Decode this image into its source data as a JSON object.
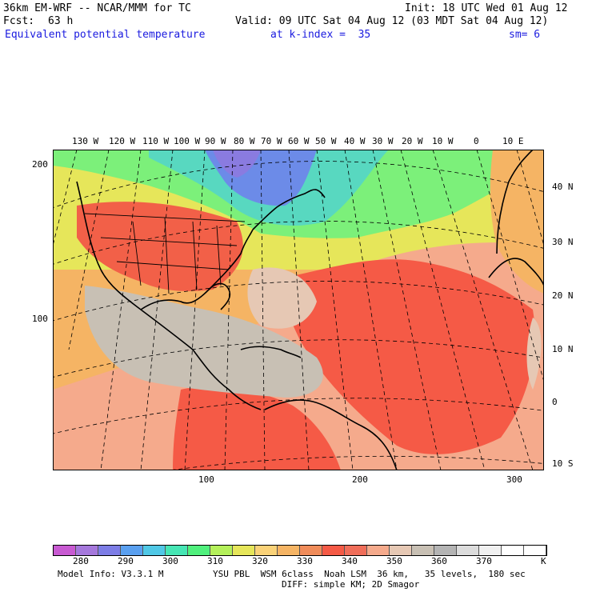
{
  "header": {
    "model": "36km EM-WRF -- NCAR/MMM for TC",
    "init": "Init: 18 UTC Wed 01 Aug 12",
    "fcst_label": "Fcst:",
    "fcst_value": "63 h",
    "valid": "Valid: 09 UTC Sat 04 Aug 12 (03 MDT Sat 04 Aug 12)",
    "field": "Equivalent potential temperature",
    "level": "at k-index =  35",
    "smoothing": "sm= 6"
  },
  "map": {
    "top_lon_labels": [
      "130 W",
      "120 W",
      "110 W",
      "100 W",
      "90 W",
      "80 W",
      "70 W",
      "60 W",
      "50 W",
      "40 W",
      "30 W",
      "20 W",
      "10 W",
      "0",
      "10 E"
    ],
    "right_lat_labels": [
      "40 N",
      "30 N",
      "20 N",
      "10 N",
      "0",
      "10 S"
    ],
    "left_grid_labels": [
      "200",
      "100"
    ],
    "bottom_grid_labels": [
      "100",
      "200",
      "300"
    ]
  },
  "colorbar": {
    "colors": [
      "#c85ad2",
      "#a578dc",
      "#7d7de6",
      "#5aa0f0",
      "#50c8e6",
      "#46e6b4",
      "#50f07d",
      "#b4f05a",
      "#e6e65a",
      "#fad278",
      "#f5b464",
      "#f08c5a",
      "#f55a46",
      "#f06e5a",
      "#f5aa8c",
      "#e6c8b4",
      "#c8c0b4",
      "#b4b4b4",
      "#dcdcdc",
      "#f0f0f0",
      "#ffffff",
      "#ffffff"
    ],
    "labels": [
      "280",
      "290",
      "300",
      "310",
      "320",
      "330",
      "340",
      "350",
      "360",
      "370"
    ],
    "unit": "K"
  },
  "footer": {
    "model_info": "Model Info: V3.3.1 M",
    "physics": "YSU PBL  WSM 6class  Noah LSM  36 km,   35 levels,  180 sec",
    "diffusion": "DIFF: simple KM; 2D Smagor"
  }
}
